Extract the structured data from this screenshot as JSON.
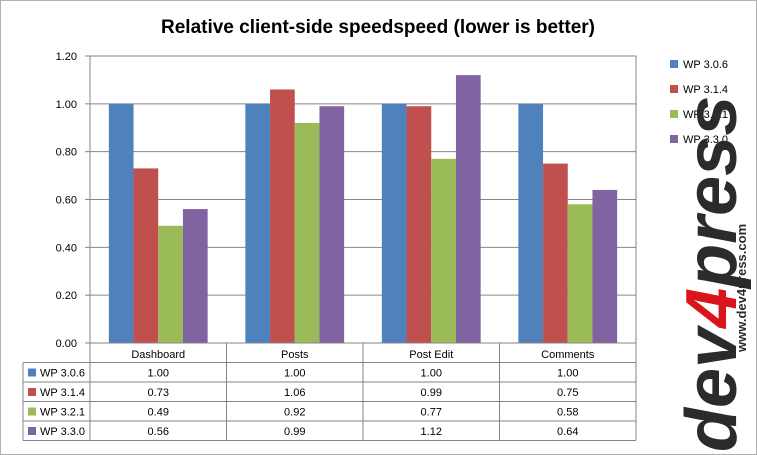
{
  "chart_data": {
    "type": "bar",
    "title": "Relative client-side speedspeed (lower is better)",
    "categories": [
      "Dashboard",
      "Posts",
      "Post Edit",
      "Comments"
    ],
    "series": [
      {
        "name": "WP 3.0.6",
        "color": "#4f81bd",
        "values": [
          1.0,
          1.0,
          1.0,
          1.0
        ],
        "labels": [
          "1.00",
          "1.00",
          "1.00",
          "1.00"
        ]
      },
      {
        "name": "WP 3.1.4",
        "color": "#c0504d",
        "values": [
          0.73,
          1.06,
          0.99,
          0.75
        ],
        "labels": [
          "0.73",
          "1.06",
          "0.99",
          "0.75"
        ]
      },
      {
        "name": "WP 3.2.1",
        "color": "#9bbb59",
        "values": [
          0.49,
          0.92,
          0.77,
          0.58
        ],
        "labels": [
          "0.49",
          "0.92",
          "0.77",
          "0.58"
        ]
      },
      {
        "name": "WP 3.3.0",
        "color": "#8064a2",
        "values": [
          0.56,
          0.99,
          1.12,
          0.64
        ],
        "labels": [
          "0.56",
          "0.99",
          "1.12",
          "0.64"
        ]
      }
    ],
    "ylim": [
      0,
      1.2
    ],
    "yticks": [
      "0.00",
      "0.20",
      "0.40",
      "0.60",
      "0.80",
      "1.00",
      "1.20"
    ],
    "grid": true,
    "legend": "right",
    "data_table": true
  },
  "watermark": {
    "text_main": "dev",
    "text_accent": "4",
    "text_tail": "press",
    "url": "www.dev4press.com"
  }
}
